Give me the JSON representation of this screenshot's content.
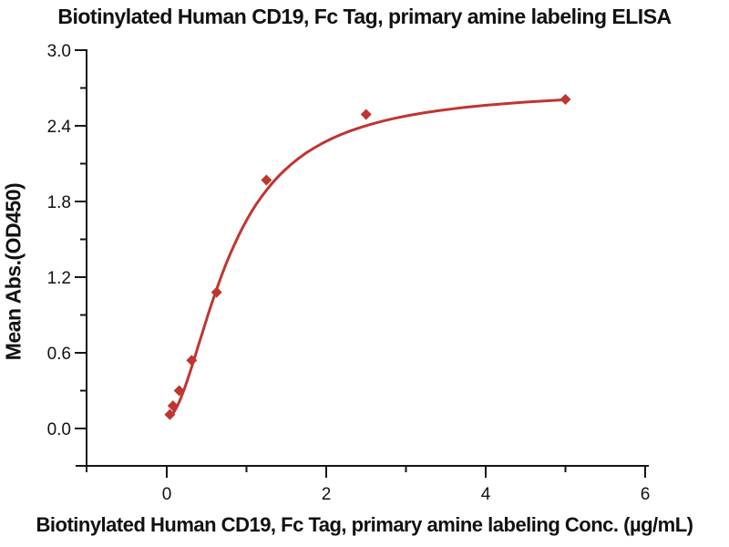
{
  "title": "Biotinylated Human CD19, Fc Tag, primary amine labeling ELISA",
  "chart_data": {
    "type": "scatter",
    "title": "Biotinylated Human CD19, Fc Tag, primary amine labeling ELISA",
    "xlabel": "Biotinylated Human CD19, Fc Tag, primary amine labeling Conc. (µg/mL)",
    "ylabel": "Mean Abs.(OD450)",
    "series": [
      {
        "name": "Biotinylated Human CD19, Fc Tag",
        "marker": "diamond",
        "x": [
          0.039,
          0.078,
          0.156,
          0.3125,
          0.625,
          1.25,
          2.5,
          5.0
        ],
        "y": [
          0.11,
          0.18,
          0.3,
          0.54,
          1.08,
          1.97,
          2.49,
          2.61
        ]
      }
    ],
    "fit_curve": {
      "model": "4PL",
      "bottom": 0.08,
      "top": 2.7,
      "ec50": 0.8,
      "hill": 1.8,
      "x_start": 0.035,
      "x_end": 5.0
    },
    "xlim": [
      -1.06,
      6.05
    ],
    "ylim": [
      -0.35,
      3.0
    ],
    "x_ticks": {
      "major": [
        {
          "value": 0,
          "label": "0"
        },
        {
          "value": 2,
          "label": "2"
        },
        {
          "value": 4,
          "label": "4"
        },
        {
          "value": 6,
          "label": "6"
        }
      ],
      "minor": [
        1,
        3,
        5
      ]
    },
    "y_ticks": {
      "major": [
        {
          "value": 0.0,
          "label": "0.0"
        },
        {
          "value": 0.6,
          "label": "0.6"
        },
        {
          "value": 1.2,
          "label": "1.2"
        },
        {
          "value": 1.8,
          "label": "1.8"
        },
        {
          "value": 2.4,
          "label": "2.4"
        },
        {
          "value": 3.0,
          "label": "3.0"
        }
      ],
      "minor": [
        0.3,
        0.9,
        1.5,
        2.1,
        2.7
      ]
    },
    "grid": false,
    "legend": false,
    "colors": {
      "series": "#bf3530",
      "axis": "#141414",
      "text": "#111111",
      "background": "#ffffff"
    }
  }
}
